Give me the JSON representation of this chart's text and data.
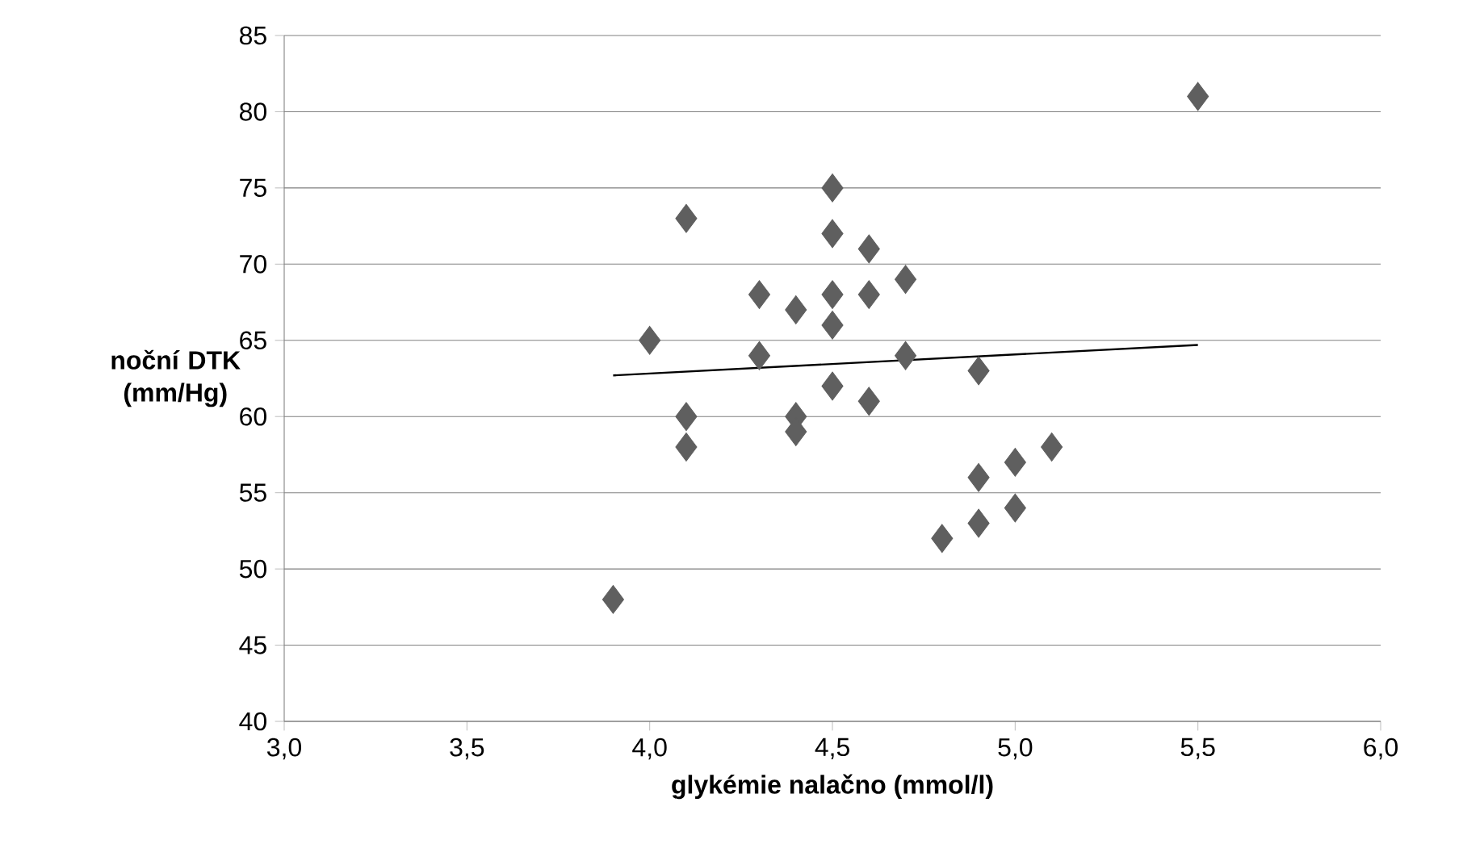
{
  "chart_data": {
    "type": "scatter",
    "xlabel": "glykémie nalačno (mmol/l)",
    "ylabel": "noční DTK (mm/Hg)",
    "grid": "y",
    "marker": "diamond",
    "xlim": [
      3,
      6
    ],
    "ylim": [
      40,
      85
    ],
    "xticks": [
      {
        "value": 3,
        "label": "3,0"
      },
      {
        "value": 3.5,
        "label": "3,5"
      },
      {
        "value": 4,
        "label": "4,0"
      },
      {
        "value": 4.5,
        "label": "4,5"
      },
      {
        "value": 5,
        "label": "5,0"
      },
      {
        "value": 5.5,
        "label": "5,5"
      },
      {
        "value": 6,
        "label": "6,0"
      }
    ],
    "yticks": [
      40,
      45,
      50,
      55,
      60,
      65,
      70,
      75,
      80,
      85
    ],
    "series": [
      {
        "color": "#5f5f5f",
        "x": [
          4.1,
          4.5,
          5.5,
          4.5,
          4.6,
          4.3,
          4.4,
          4.5,
          4.6,
          4.7,
          4.0,
          4.5,
          4.3,
          4.7,
          4.9,
          4.1,
          4.4,
          4.5,
          4.6,
          4.1,
          4.4,
          5.0,
          5.1,
          4.9,
          5.0,
          4.9,
          4.8,
          3.9
        ],
        "values": [
          73,
          75,
          81,
          72,
          71,
          68,
          67,
          68,
          68,
          69,
          65,
          66,
          64,
          64,
          63,
          60,
          60,
          62,
          61,
          58,
          59,
          57,
          58,
          56,
          54,
          53,
          52,
          48
        ]
      },
      {
        "type": "line",
        "color": "#000000",
        "marker": "none",
        "x": [
          3.9,
          5.5
        ],
        "values": [
          62.7,
          64.7
        ]
      }
    ]
  }
}
